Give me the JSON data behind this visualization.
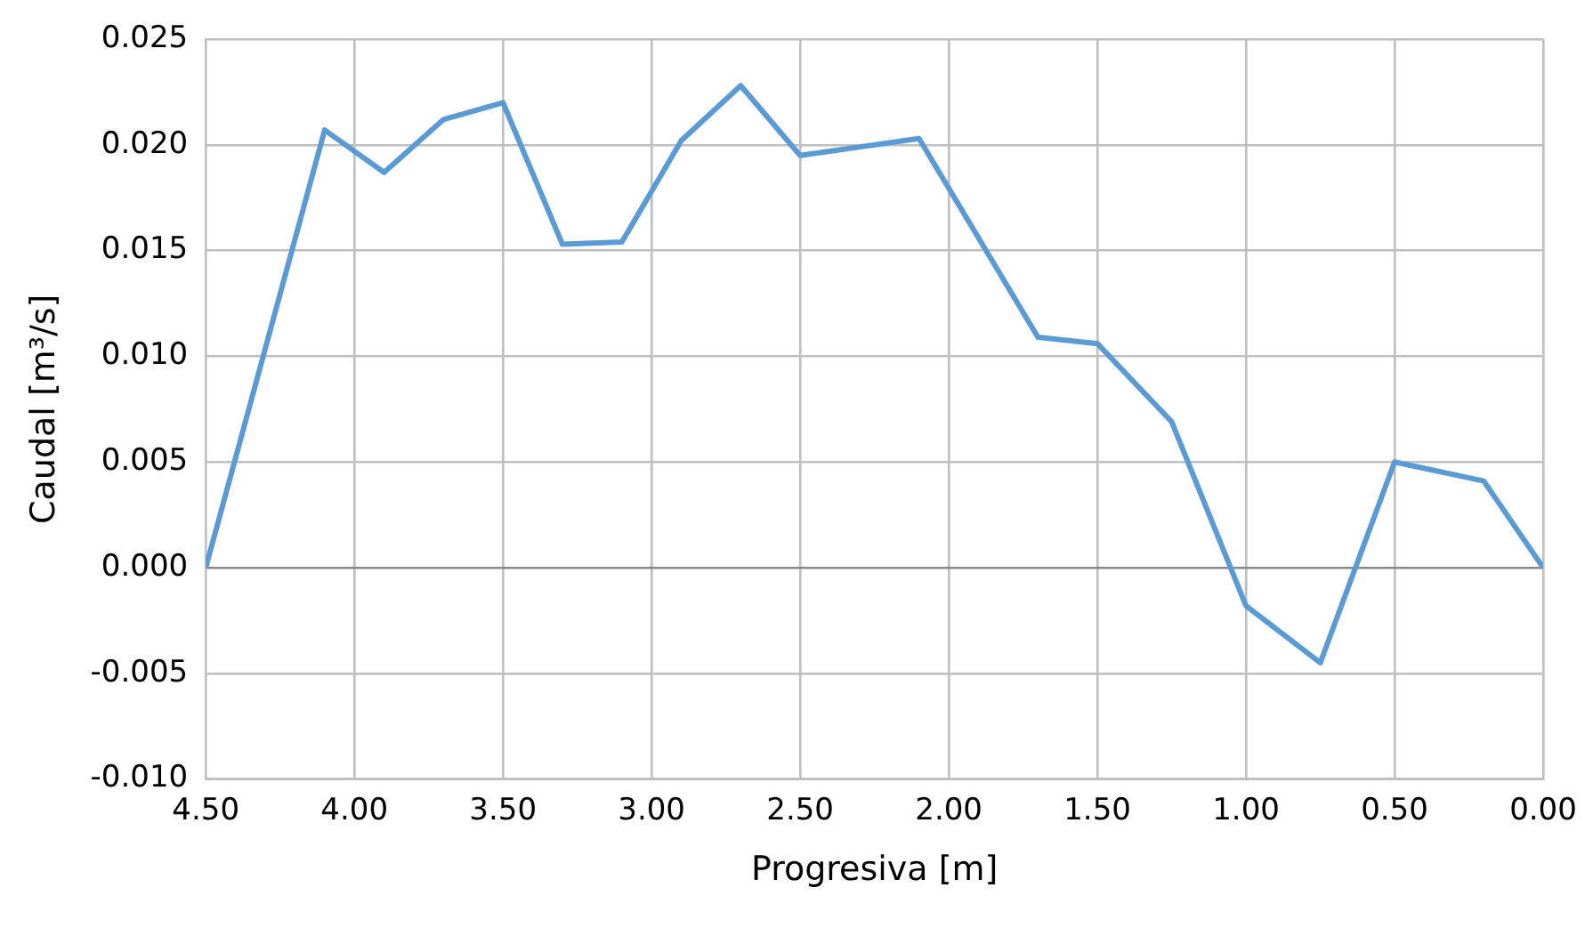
{
  "chart_data": {
    "type": "line",
    "xlabel": "Progresiva [m]",
    "ylabel": "Caudal [m³/s]",
    "x": [
      4.5,
      4.1,
      3.9,
      3.7,
      3.5,
      3.3,
      3.1,
      2.9,
      2.7,
      2.5,
      2.1,
      1.7,
      1.5,
      1.25,
      1.0,
      0.75,
      0.5,
      0.2,
      0.0
    ],
    "series": [
      {
        "color": "#5b9bd5",
        "values": [
          0.0,
          0.0207,
          0.0187,
          0.0212,
          0.022,
          0.0153,
          0.0154,
          0.0202,
          0.0228,
          0.0195,
          0.0203,
          0.0109,
          0.0106,
          0.0069,
          -0.0018,
          -0.0045,
          0.005,
          0.0041,
          0.0
        ]
      }
    ],
    "xlim": [
      4.5,
      0.0
    ],
    "xticks": [
      {
        "value": 4.5,
        "label": "4.50"
      },
      {
        "value": 4.0,
        "label": "4.00"
      },
      {
        "value": 3.5,
        "label": "3.50"
      },
      {
        "value": 3.0,
        "label": "3.00"
      },
      {
        "value": 2.5,
        "label": "2.50"
      },
      {
        "value": 2.0,
        "label": "2.00"
      },
      {
        "value": 1.5,
        "label": "1.50"
      },
      {
        "value": 1.0,
        "label": "1.00"
      },
      {
        "value": 0.5,
        "label": "0.50"
      },
      {
        "value": 0.0,
        "label": "0.00"
      }
    ],
    "ylim": [
      -0.01,
      0.025
    ],
    "yticks": [
      {
        "value": -0.01,
        "label": "-0.010"
      },
      {
        "value": -0.005,
        "label": "-0.005"
      },
      {
        "value": 0.0,
        "label": "0.000"
      },
      {
        "value": 0.005,
        "label": "0.005"
      },
      {
        "value": 0.01,
        "label": "0.010"
      },
      {
        "value": 0.015,
        "label": "0.015"
      },
      {
        "value": 0.02,
        "label": "0.020"
      },
      {
        "value": 0.025,
        "label": "0.025"
      }
    ],
    "grid": true,
    "marker": "none",
    "line_style": "solid",
    "legend": false
  }
}
